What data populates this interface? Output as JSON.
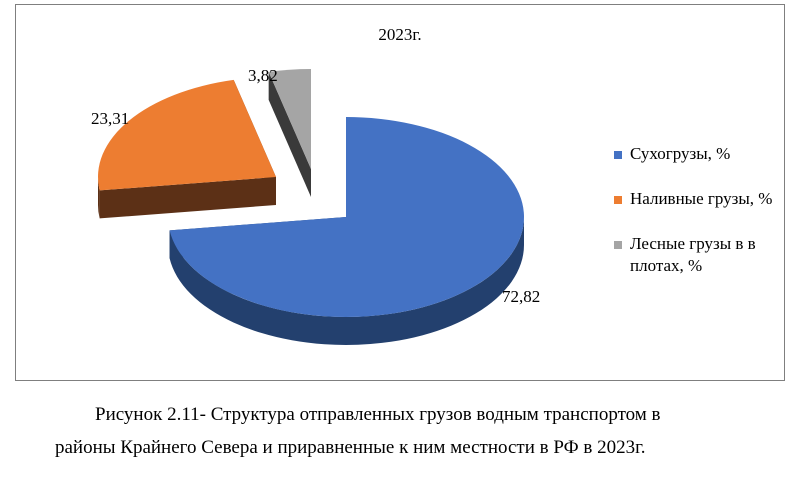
{
  "chart_data": {
    "type": "pie",
    "title": "2023г.",
    "categories": [
      "Сухогрузы, %",
      "Наливные грузы, %",
      "Лесные грузы в в плотах, %"
    ],
    "values": [
      72.82,
      23.31,
      3.82
    ],
    "data_labels": [
      "72,82",
      "23,31",
      "3,82"
    ],
    "colors": [
      "#4472c4",
      "#ed7d31",
      "#a5a5a5"
    ],
    "style": "3d exploded",
    "legend_position": "right"
  },
  "caption": {
    "line1": "Рисунок 2.11- Структура отправленных грузов водным транспортом в",
    "line2": "районы Крайнего Севера и приравненные к ним местности в РФ в 2023г."
  }
}
